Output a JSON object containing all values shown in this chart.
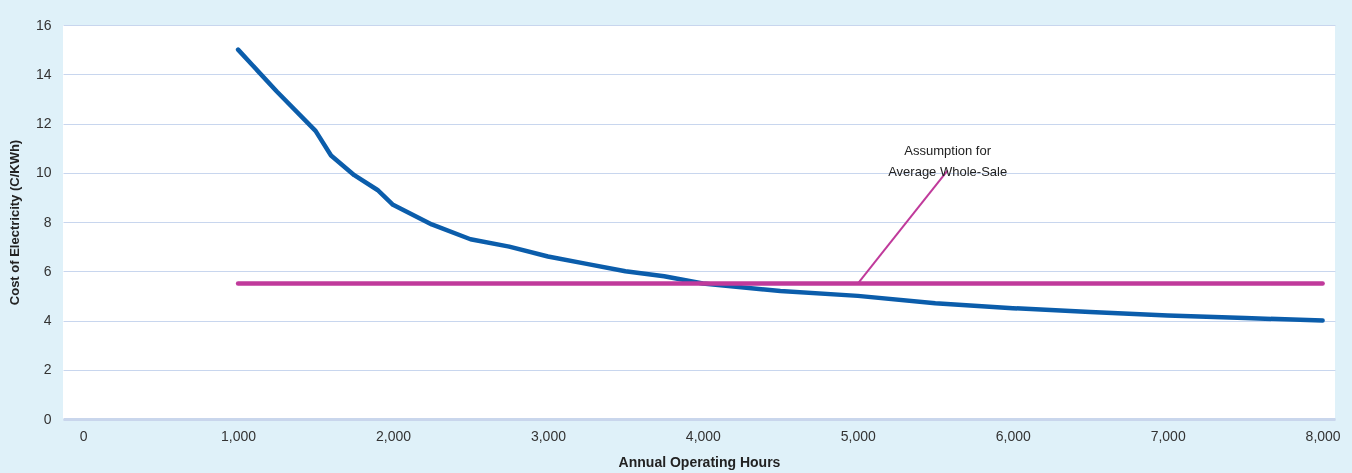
{
  "chart_data": {
    "type": "line",
    "xlabel": "Annual Operating Hours",
    "ylabel": "Cost of Electricity (C/KWh)",
    "series": [
      {
        "color": "#0b5dab",
        "x": [
          1000,
          1250,
          1500,
          1600,
          1750,
          1900,
          2000,
          2250,
          2500,
          2750,
          3000,
          3250,
          3500,
          3750,
          4000,
          4500,
          5000,
          5500,
          6000,
          6500,
          7000,
          7500,
          8000
        ],
        "values": [
          15.0,
          13.3,
          11.7,
          10.7,
          9.9,
          9.3,
          8.7,
          7.9,
          7.3,
          7.0,
          6.6,
          6.3,
          6.0,
          5.8,
          5.5,
          5.2,
          5.0,
          4.7,
          4.5,
          4.35,
          4.2,
          4.1,
          4.0
        ]
      },
      {
        "color": "#c03a9b",
        "x": [
          1000,
          2000,
          3000,
          4000,
          5000,
          6000,
          7000,
          8000
        ],
        "values": [
          5.5,
          5.5,
          5.5,
          5.5,
          5.5,
          5.5,
          5.5,
          5.5
        ]
      }
    ],
    "annotations": [
      {
        "text": "Assumption for\nAverage Whole-Sale",
        "x": 5000,
        "y": 5.5
      }
    ],
    "xlim": [
      -130,
      8080
    ],
    "xticks": [
      0,
      {
        "value": 1000,
        "label": "1,000"
      },
      {
        "value": 2000,
        "label": "2,000"
      },
      {
        "value": 3000,
        "label": "3,000"
      },
      {
        "value": 4000,
        "label": "4,000"
      },
      {
        "value": 5000,
        "label": "5,000"
      },
      {
        "value": 6000,
        "label": "6,000"
      },
      {
        "value": 7000,
        "label": "7,000"
      },
      {
        "value": 8000,
        "label": "8,000"
      }
    ],
    "ylim": [
      0,
      16
    ],
    "yticks": [
      0,
      2,
      4,
      6,
      8,
      10,
      12,
      14,
      16
    ],
    "grid": "y",
    "marker": "none",
    "line_style": "solid"
  }
}
